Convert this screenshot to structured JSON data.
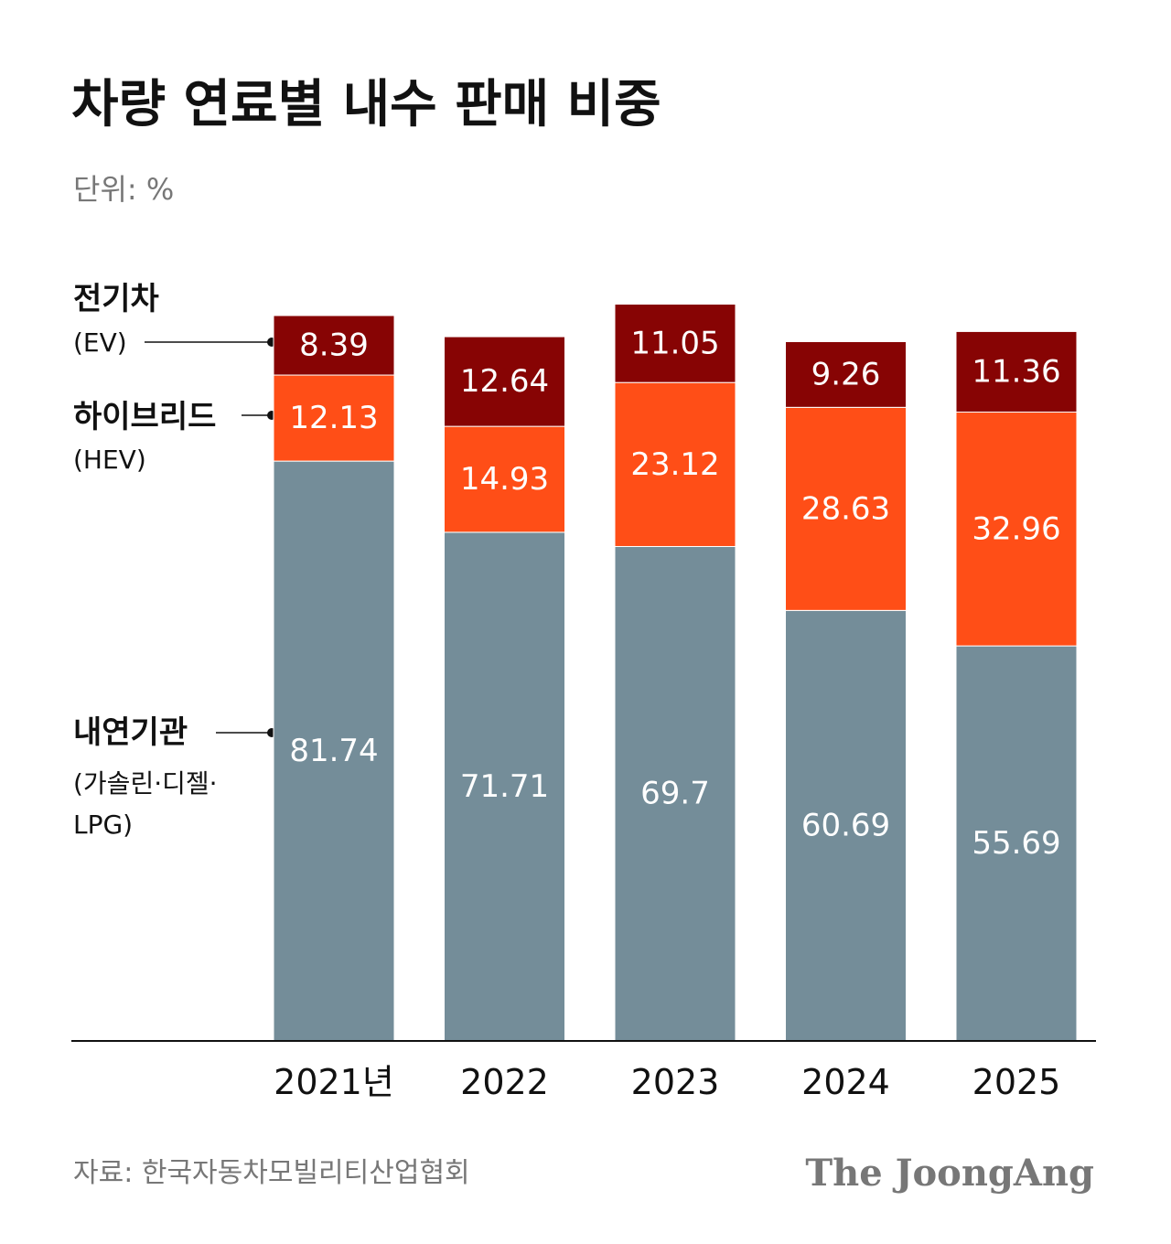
{
  "title": "차량 연료별 내수 판매 비중",
  "unit": "단위: %",
  "source": "자료: 한국자동차모빌리티산업협회",
  "logo": "The JoongAng",
  "colors": {
    "ice": "#748d99",
    "hev": "#ff4e17",
    "ev": "#870404"
  },
  "legend": {
    "ev": {
      "name": "전기차",
      "sub": "(EV)"
    },
    "hev": {
      "name": "하이브리드",
      "sub": "(HEV)"
    },
    "ice": {
      "name": "내연기관",
      "sub1": "(가솔린·디젤·",
      "sub2": "LPG)"
    }
  },
  "chart_data": {
    "type": "bar",
    "stacked": true,
    "title": "차량 연료별 내수 판매 비중",
    "ylabel": "단위: %",
    "categories": [
      "2021년",
      "2022",
      "2023",
      "2024",
      "2025"
    ],
    "series": [
      {
        "name": "내연기관",
        "values": [
          81.74,
          71.71,
          69.7,
          60.69,
          55.69
        ],
        "labels": [
          "81.74",
          "71.71",
          "69.7",
          "60.69",
          "55.69"
        ]
      },
      {
        "name": "하이브리드",
        "values": [
          12.13,
          14.93,
          23.12,
          28.63,
          32.96
        ],
        "labels": [
          "12.13",
          "14.93",
          "23.12",
          "28.63",
          "32.96"
        ]
      },
      {
        "name": "전기차",
        "values": [
          8.39,
          12.64,
          11.05,
          9.26,
          11.36
        ],
        "labels": [
          "8.39",
          "12.64",
          "11.05",
          "9.26",
          "11.36"
        ]
      }
    ],
    "grid": false,
    "legend_placement": "left"
  }
}
